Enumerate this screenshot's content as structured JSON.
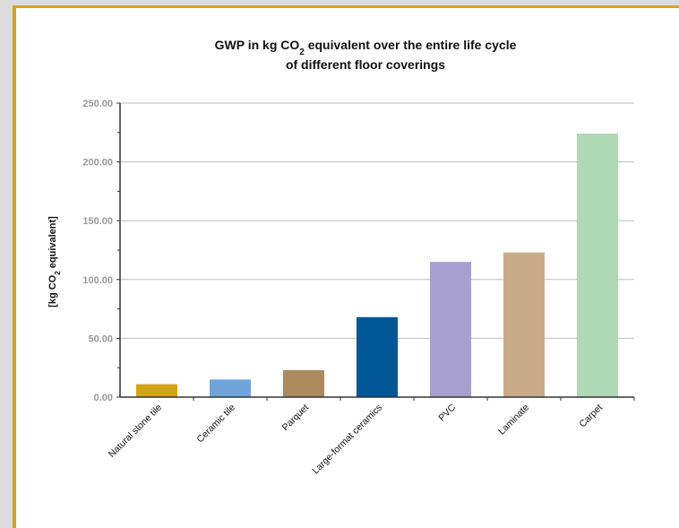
{
  "chart_data": {
    "type": "bar",
    "title_lines": [
      {
        "pre": "GWP in kg CO",
        "sub": "2",
        "post": " equivalent over the entire life cycle"
      },
      {
        "pre": "of different floor coverings",
        "sub": "",
        "post": ""
      }
    ],
    "ylabel": {
      "pre": "[kg CO",
      "sub": "2",
      "post": " equivalent]"
    },
    "xlabel": "",
    "ylim": [
      0,
      250
    ],
    "yticks": [
      "0.00",
      "50.00",
      "100.00",
      "150.00",
      "200.00",
      "250.00"
    ],
    "grid": true,
    "categories": [
      "Natural stone tile",
      "Ceramic tile",
      "Parquet",
      "Large-format ceramics",
      "PVC",
      "Laminate",
      "Carpet"
    ],
    "values": [
      11,
      15,
      23,
      68,
      115,
      123,
      224
    ],
    "colors": [
      "#d4a419",
      "#6ea6dc",
      "#ad8a5e",
      "#005696",
      "#a7a0d0",
      "#c8ac88",
      "#afd8b5"
    ]
  },
  "colors": {
    "frame_border": "#d4a419",
    "grid": "#bdbdbd",
    "axis": "#333333"
  }
}
